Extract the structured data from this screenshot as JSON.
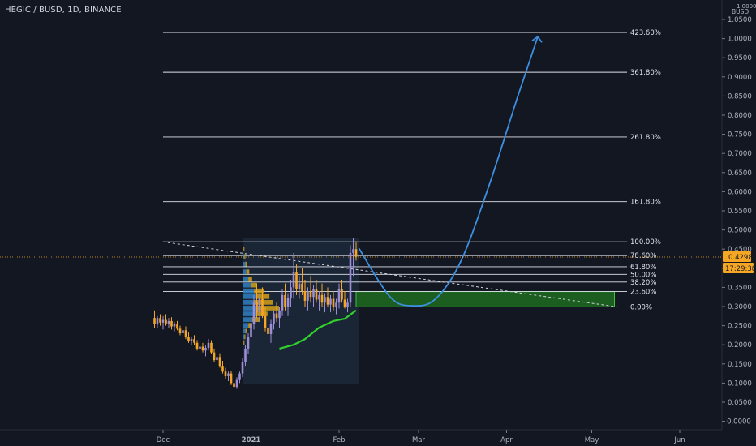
{
  "header": {
    "symbol_title": "HEGIC / BUSD, 1D, BINANCE"
  },
  "price_axis": {
    "currency_multiplier": "1.0000",
    "currency": "BUSD",
    "price_tag": "0.4298",
    "countdown": "17:29:38"
  },
  "colors": {
    "background": "#131722",
    "up_candle": "#9c8ed6",
    "down_candle": "#f5a623",
    "fib_lines": "#e0e3eb",
    "projection_curve": "#3d8fe0",
    "moving_average": "#31d12c",
    "target_zone": "#1b5e20",
    "volume_profile_up": "#2f7fc1",
    "volume_profile_down": "#d4a017",
    "price_tag": "#f5a623"
  },
  "chart_data": {
    "type": "candlestick",
    "title": "HEGIC / BUSD, 1D, BINANCE",
    "ylabel": "BUSD",
    "ylim": [
      -0.03,
      1.06
    ],
    "y_ticks": [
      "1.0500",
      "1.0000",
      "0.9500",
      "0.9000",
      "0.8500",
      "0.8000",
      "0.7500",
      "0.7000",
      "0.6500",
      "0.6000",
      "0.5500",
      "0.5000",
      "0.4500",
      "0.4000",
      "0.3500",
      "0.3000",
      "0.2500",
      "0.2000",
      "0.1500",
      "0.1000",
      "0.0500",
      "-0.0000"
    ],
    "x_ticks": [
      "Dec",
      "2021",
      "Feb",
      "Mar",
      "Apr",
      "May",
      "Jun"
    ],
    "x_tick_days": [
      0,
      31,
      62,
      90,
      121,
      151,
      182
    ],
    "last_price": 0.4298,
    "fib_levels": [
      {
        "label": "423.60%",
        "price": 1.016
      },
      {
        "label": "361.80%",
        "price": 0.912
      },
      {
        "label": "261.80%",
        "price": 0.743
      },
      {
        "label": "161.80%",
        "price": 0.574
      },
      {
        "label": "100.00%",
        "price": 0.469
      },
      {
        "label": "78.60%",
        "price": 0.433
      },
      {
        "label": "61.80%",
        "price": 0.404
      },
      {
        "label": "50.00%",
        "price": 0.384
      },
      {
        "label": "38.20%",
        "price": 0.364
      },
      {
        "label": "23.60%",
        "price": 0.339
      },
      {
        "label": "0.00%",
        "price": 0.299
      }
    ],
    "fib_start_day": 0,
    "fib_end_day": 160,
    "target_zone": {
      "day_start": 68,
      "day_end": 159,
      "price_low": 0.299,
      "price_high": 0.339
    },
    "trendline": [
      {
        "day": 0,
        "price": 0.469
      },
      {
        "day": 160,
        "price": 0.299
      }
    ],
    "projection": [
      {
        "day": 69,
        "price": 0.452
      },
      {
        "day": 80,
        "price": 0.325
      },
      {
        "day": 88,
        "price": 0.302
      },
      {
        "day": 96,
        "price": 0.32
      },
      {
        "day": 105,
        "price": 0.42
      },
      {
        "day": 115,
        "price": 0.62
      },
      {
        "day": 125,
        "price": 0.85
      },
      {
        "day": 132,
        "price": 1.005
      }
    ],
    "moving_average": [
      {
        "day": 41,
        "price": 0.19
      },
      {
        "day": 46,
        "price": 0.2
      },
      {
        "day": 50,
        "price": 0.215
      },
      {
        "day": 55,
        "price": 0.245
      },
      {
        "day": 60,
        "price": 0.262
      },
      {
        "day": 64,
        "price": 0.268
      },
      {
        "day": 68,
        "price": 0.29
      }
    ],
    "volume_profile": {
      "day_start": 28,
      "day_end": 69,
      "price_low": 0.097,
      "price_high": 0.479,
      "rows": [
        {
          "price": 0.45,
          "up": 1,
          "down": 1
        },
        {
          "price": 0.43,
          "up": 2,
          "down": 1
        },
        {
          "price": 0.41,
          "up": 3,
          "down": 2
        },
        {
          "price": 0.39,
          "up": 4,
          "down": 3
        },
        {
          "price": 0.37,
          "up": 6,
          "down": 4
        },
        {
          "price": 0.355,
          "up": 9,
          "down": 6
        },
        {
          "price": 0.34,
          "up": 12,
          "down": 10
        },
        {
          "price": 0.325,
          "up": 14,
          "down": 14
        },
        {
          "price": 0.31,
          "up": 12,
          "down": 20
        },
        {
          "price": 0.295,
          "up": 16,
          "down": 22
        },
        {
          "price": 0.28,
          "up": 14,
          "down": 12
        },
        {
          "price": 0.265,
          "up": 10,
          "down": 8
        },
        {
          "price": 0.25,
          "up": 6,
          "down": 4
        },
        {
          "price": 0.235,
          "up": 3,
          "down": 2
        },
        {
          "price": 0.22,
          "up": 2,
          "down": 1
        },
        {
          "price": 0.205,
          "up": 1,
          "down": 1
        }
      ]
    },
    "candles": [
      {
        "day": -3,
        "o": 0.27,
        "h": 0.29,
        "l": 0.245,
        "c": 0.255
      },
      {
        "day": -2,
        "o": 0.255,
        "h": 0.275,
        "l": 0.245,
        "c": 0.27
      },
      {
        "day": -1,
        "o": 0.27,
        "h": 0.28,
        "l": 0.25,
        "c": 0.258
      },
      {
        "day": 0,
        "o": 0.258,
        "h": 0.275,
        "l": 0.24,
        "c": 0.265
      },
      {
        "day": 1,
        "o": 0.265,
        "h": 0.28,
        "l": 0.25,
        "c": 0.255
      },
      {
        "day": 2,
        "o": 0.255,
        "h": 0.27,
        "l": 0.245,
        "c": 0.262
      },
      {
        "day": 3,
        "o": 0.262,
        "h": 0.272,
        "l": 0.24,
        "c": 0.248
      },
      {
        "day": 4,
        "o": 0.248,
        "h": 0.26,
        "l": 0.235,
        "c": 0.255
      },
      {
        "day": 5,
        "o": 0.255,
        "h": 0.262,
        "l": 0.238,
        "c": 0.242
      },
      {
        "day": 6,
        "o": 0.242,
        "h": 0.25,
        "l": 0.225,
        "c": 0.23
      },
      {
        "day": 7,
        "o": 0.23,
        "h": 0.245,
        "l": 0.22,
        "c": 0.238
      },
      {
        "day": 8,
        "o": 0.238,
        "h": 0.248,
        "l": 0.215,
        "c": 0.22
      },
      {
        "day": 9,
        "o": 0.22,
        "h": 0.232,
        "l": 0.205,
        "c": 0.21
      },
      {
        "day": 10,
        "o": 0.21,
        "h": 0.222,
        "l": 0.198,
        "c": 0.215
      },
      {
        "day": 11,
        "o": 0.215,
        "h": 0.225,
        "l": 0.2,
        "c": 0.205
      },
      {
        "day": 12,
        "o": 0.205,
        "h": 0.212,
        "l": 0.185,
        "c": 0.19
      },
      {
        "day": 13,
        "o": 0.19,
        "h": 0.2,
        "l": 0.178,
        "c": 0.195
      },
      {
        "day": 14,
        "o": 0.195,
        "h": 0.205,
        "l": 0.18,
        "c": 0.185
      },
      {
        "day": 15,
        "o": 0.185,
        "h": 0.198,
        "l": 0.17,
        "c": 0.192
      },
      {
        "day": 16,
        "o": 0.192,
        "h": 0.215,
        "l": 0.185,
        "c": 0.205
      },
      {
        "day": 17,
        "o": 0.205,
        "h": 0.212,
        "l": 0.175,
        "c": 0.18
      },
      {
        "day": 18,
        "o": 0.18,
        "h": 0.19,
        "l": 0.155,
        "c": 0.16
      },
      {
        "day": 19,
        "o": 0.16,
        "h": 0.175,
        "l": 0.148,
        "c": 0.168
      },
      {
        "day": 20,
        "o": 0.168,
        "h": 0.178,
        "l": 0.14,
        "c": 0.145
      },
      {
        "day": 21,
        "o": 0.145,
        "h": 0.158,
        "l": 0.125,
        "c": 0.13
      },
      {
        "day": 22,
        "o": 0.13,
        "h": 0.14,
        "l": 0.112,
        "c": 0.118
      },
      {
        "day": 23,
        "o": 0.118,
        "h": 0.13,
        "l": 0.105,
        "c": 0.125
      },
      {
        "day": 24,
        "o": 0.125,
        "h": 0.132,
        "l": 0.095,
        "c": 0.1
      },
      {
        "day": 25,
        "o": 0.1,
        "h": 0.11,
        "l": 0.082,
        "c": 0.09
      },
      {
        "day": 26,
        "o": 0.09,
        "h": 0.115,
        "l": 0.085,
        "c": 0.11
      },
      {
        "day": 27,
        "o": 0.11,
        "h": 0.13,
        "l": 0.1,
        "c": 0.125
      },
      {
        "day": 28,
        "o": 0.125,
        "h": 0.165,
        "l": 0.115,
        "c": 0.155
      },
      {
        "day": 29,
        "o": 0.155,
        "h": 0.2,
        "l": 0.145,
        "c": 0.19
      },
      {
        "day": 30,
        "o": 0.19,
        "h": 0.23,
        "l": 0.175,
        "c": 0.22
      },
      {
        "day": 31,
        "o": 0.22,
        "h": 0.27,
        "l": 0.205,
        "c": 0.255
      },
      {
        "day": 32,
        "o": 0.255,
        "h": 0.33,
        "l": 0.24,
        "c": 0.31
      },
      {
        "day": 33,
        "o": 0.31,
        "h": 0.36,
        "l": 0.27,
        "c": 0.285
      },
      {
        "day": 34,
        "o": 0.285,
        "h": 0.33,
        "l": 0.26,
        "c": 0.32
      },
      {
        "day": 35,
        "o": 0.32,
        "h": 0.35,
        "l": 0.27,
        "c": 0.275
      },
      {
        "day": 36,
        "o": 0.275,
        "h": 0.3,
        "l": 0.235,
        "c": 0.245
      },
      {
        "day": 37,
        "o": 0.245,
        "h": 0.28,
        "l": 0.215,
        "c": 0.228
      },
      {
        "day": 38,
        "o": 0.228,
        "h": 0.265,
        "l": 0.205,
        "c": 0.255
      },
      {
        "day": 39,
        "o": 0.255,
        "h": 0.29,
        "l": 0.24,
        "c": 0.282
      },
      {
        "day": 40,
        "o": 0.282,
        "h": 0.31,
        "l": 0.26,
        "c": 0.27
      },
      {
        "day": 41,
        "o": 0.27,
        "h": 0.3,
        "l": 0.245,
        "c": 0.29
      },
      {
        "day": 42,
        "o": 0.29,
        "h": 0.345,
        "l": 0.275,
        "c": 0.33
      },
      {
        "day": 43,
        "o": 0.33,
        "h": 0.36,
        "l": 0.29,
        "c": 0.3
      },
      {
        "day": 44,
        "o": 0.3,
        "h": 0.335,
        "l": 0.275,
        "c": 0.322
      },
      {
        "day": 45,
        "o": 0.322,
        "h": 0.37,
        "l": 0.3,
        "c": 0.35
      },
      {
        "day": 46,
        "o": 0.35,
        "h": 0.44,
        "l": 0.32,
        "c": 0.39
      },
      {
        "day": 47,
        "o": 0.39,
        "h": 0.41,
        "l": 0.33,
        "c": 0.345
      },
      {
        "day": 48,
        "o": 0.345,
        "h": 0.38,
        "l": 0.32,
        "c": 0.36
      },
      {
        "day": 49,
        "o": 0.36,
        "h": 0.4,
        "l": 0.33,
        "c": 0.34
      },
      {
        "day": 50,
        "o": 0.34,
        "h": 0.37,
        "l": 0.3,
        "c": 0.315
      },
      {
        "day": 51,
        "o": 0.315,
        "h": 0.35,
        "l": 0.29,
        "c": 0.34
      },
      {
        "day": 52,
        "o": 0.34,
        "h": 0.38,
        "l": 0.31,
        "c": 0.325
      },
      {
        "day": 53,
        "o": 0.325,
        "h": 0.355,
        "l": 0.3,
        "c": 0.345
      },
      {
        "day": 54,
        "o": 0.345,
        "h": 0.37,
        "l": 0.31,
        "c": 0.318
      },
      {
        "day": 55,
        "o": 0.318,
        "h": 0.34,
        "l": 0.29,
        "c": 0.33
      },
      {
        "day": 56,
        "o": 0.33,
        "h": 0.36,
        "l": 0.3,
        "c": 0.31
      },
      {
        "day": 57,
        "o": 0.31,
        "h": 0.335,
        "l": 0.285,
        "c": 0.325
      },
      {
        "day": 58,
        "o": 0.325,
        "h": 0.35,
        "l": 0.3,
        "c": 0.305
      },
      {
        "day": 59,
        "o": 0.305,
        "h": 0.33,
        "l": 0.285,
        "c": 0.32
      },
      {
        "day": 60,
        "o": 0.32,
        "h": 0.34,
        "l": 0.29,
        "c": 0.298
      },
      {
        "day": 61,
        "o": 0.298,
        "h": 0.32,
        "l": 0.28,
        "c": 0.31
      },
      {
        "day": 62,
        "o": 0.31,
        "h": 0.36,
        "l": 0.295,
        "c": 0.345
      },
      {
        "day": 63,
        "o": 0.345,
        "h": 0.37,
        "l": 0.31,
        "c": 0.318
      },
      {
        "day": 64,
        "o": 0.318,
        "h": 0.34,
        "l": 0.295,
        "c": 0.3
      },
      {
        "day": 65,
        "o": 0.3,
        "h": 0.32,
        "l": 0.285,
        "c": 0.31
      },
      {
        "day": 66,
        "o": 0.31,
        "h": 0.46,
        "l": 0.3,
        "c": 0.44
      },
      {
        "day": 67,
        "o": 0.44,
        "h": 0.48,
        "l": 0.38,
        "c": 0.45
      },
      {
        "day": 68,
        "o": 0.45,
        "h": 0.47,
        "l": 0.42,
        "c": 0.43
      }
    ]
  }
}
